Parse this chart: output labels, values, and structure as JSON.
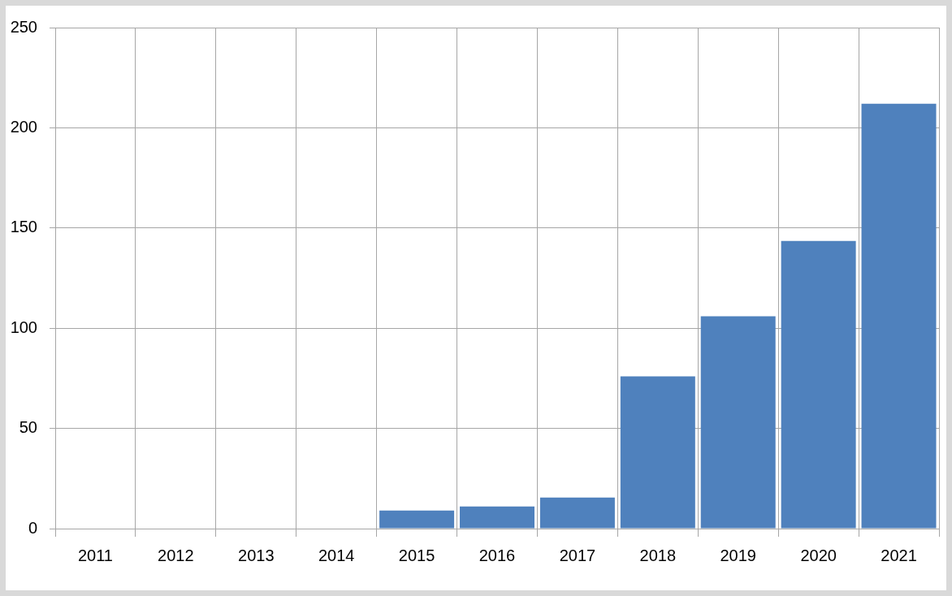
{
  "chart_data": {
    "type": "bar",
    "categories": [
      "2011",
      "2012",
      "2013",
      "2014",
      "2015",
      "2016",
      "2017",
      "2018",
      "2019",
      "2020",
      "2021"
    ],
    "values": [
      null,
      null,
      null,
      null,
      9,
      11,
      15.5,
      76,
      106,
      143.5,
      212
    ],
    "color": "#4f81bd",
    "ylim": [
      0,
      250
    ],
    "yticks": [
      0,
      50,
      100,
      150,
      200,
      250
    ],
    "grid": true
  }
}
